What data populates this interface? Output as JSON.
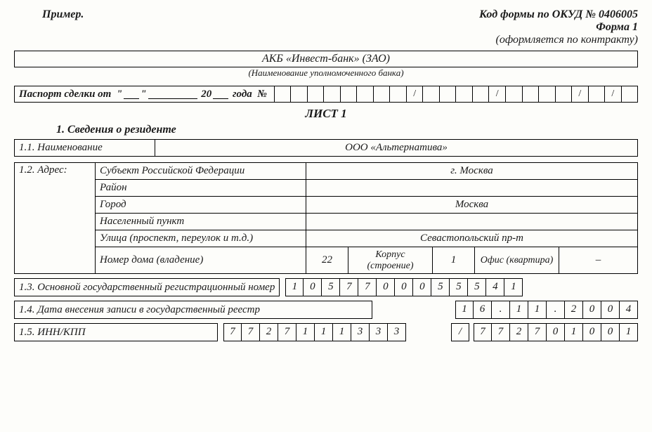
{
  "header": {
    "example": "Пример.",
    "okud": "Код формы по ОКУД № 0406005",
    "form_no": "Форма 1",
    "note": "(оформляется по контракту)"
  },
  "bank": {
    "name": "АКБ «Инвест-банк» (ЗАО)",
    "caption": "(Наименование уполномоченного банка)"
  },
  "passport": {
    "label_prefix": "Паспорт сделки от",
    "year_prefix": "20",
    "year_suffix": "года",
    "num": "№",
    "sep": "/"
  },
  "sheet_title": "ЛИСТ 1",
  "section1": {
    "title": "1. Сведения о резиденте",
    "r11_label": "1.1. Наименование",
    "r11_value": "ООО «Альтернатива»",
    "r12_label": "1.2. Адрес:",
    "subject_label": "Субъект Российской Федерации",
    "subject_value": "г. Москва",
    "district_label": "Район",
    "district_value": "",
    "city_label": "Город",
    "city_value": "Москва",
    "locality_label": "Населенный пункт",
    "locality_value": "",
    "street_label": "Улица (проспект, переулок и т.д.)",
    "street_value": "Севастопольский пр-т",
    "house_label": "Номер дома (владение)",
    "house_value": "22",
    "korpus_label": "Корпус (строение)",
    "korpus_value": "1",
    "office_label": "Офис (квартира)",
    "office_value": "–",
    "r13_label": "1.3. Основной государственный регистрационный номер",
    "r13_cells": [
      "1",
      "0",
      "5",
      "7",
      "7",
      "0",
      "0",
      "0",
      "5",
      "5",
      "5",
      "4",
      "1"
    ],
    "r14_label": "1.4. Дата внесения записи в государственный реестр",
    "r14_cells": [
      "1",
      "6",
      ".",
      "1",
      "1",
      ".",
      "2",
      "0",
      "0",
      "4"
    ],
    "r15_label": "1.5. ИНН/КПП",
    "r15_inn": [
      "7",
      "7",
      "2",
      "7",
      "1",
      "1",
      "1",
      "3",
      "3",
      "3"
    ],
    "r15_sep": "/",
    "r15_kpp": [
      "7",
      "7",
      "2",
      "7",
      "0",
      "1",
      "0",
      "0",
      "1"
    ]
  }
}
